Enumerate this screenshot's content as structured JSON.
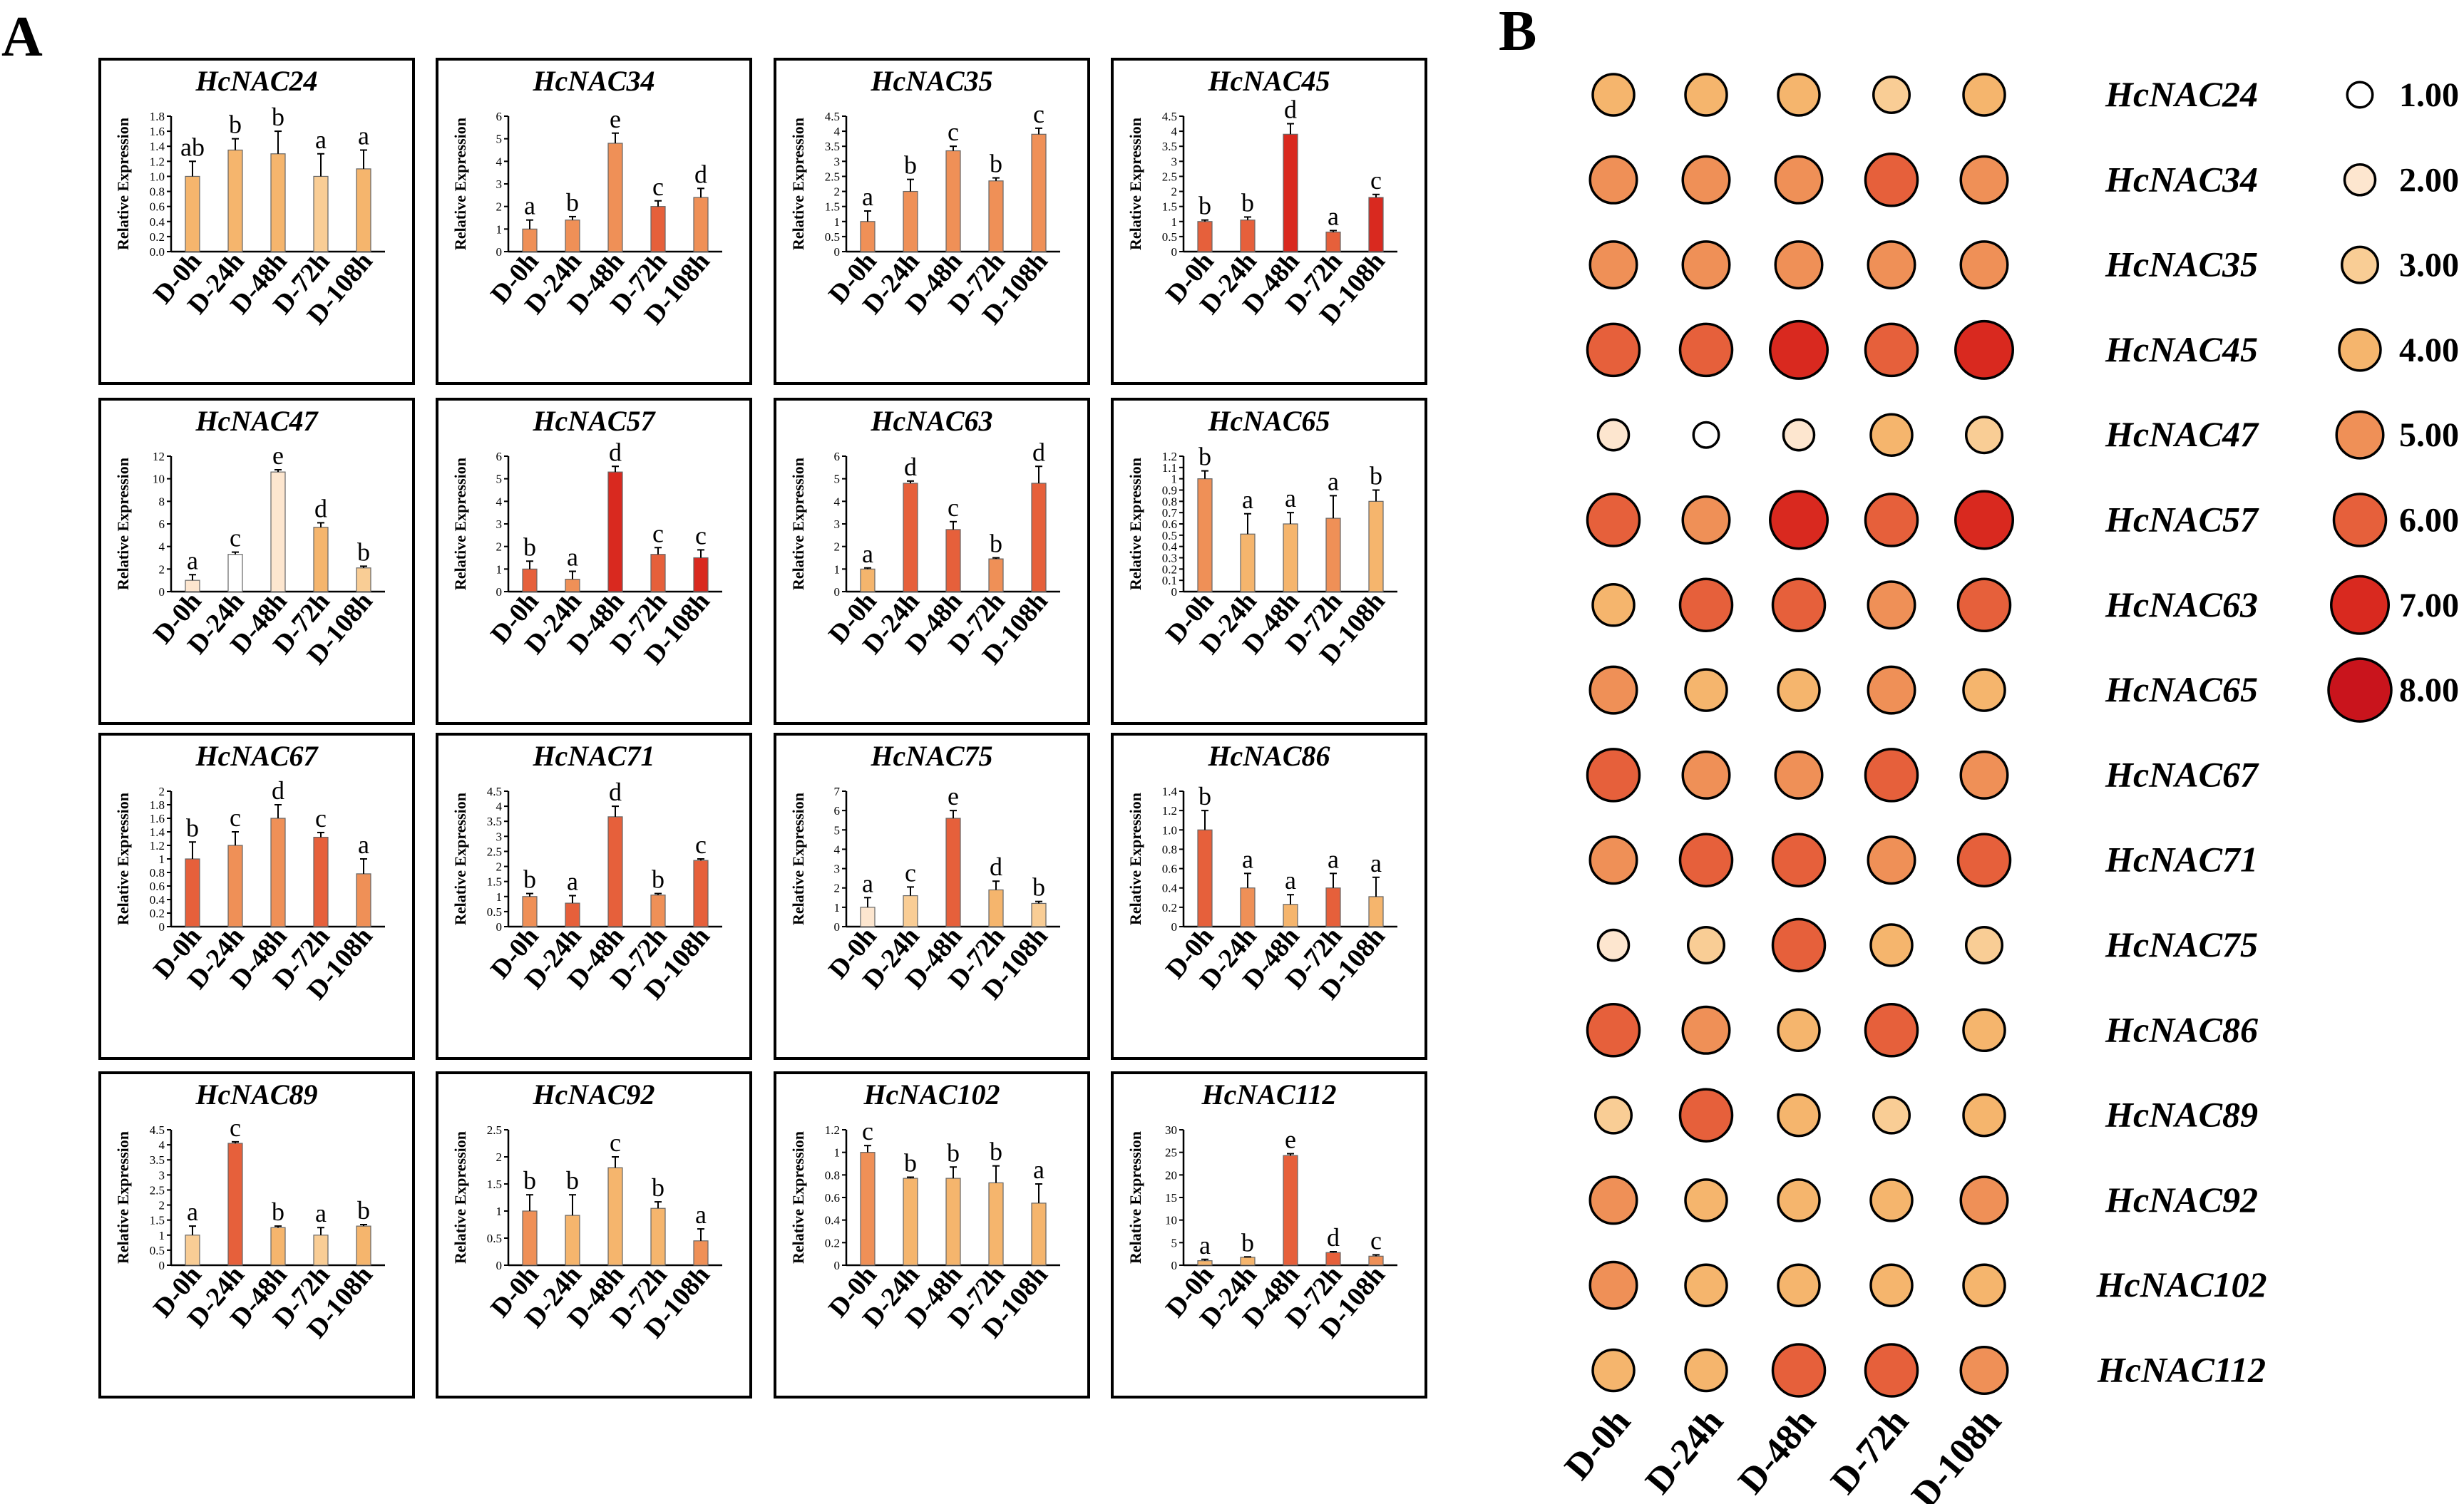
{
  "panel_a_label": "A",
  "panel_b_label": "B",
  "ylabel": "Relative Expression",
  "colors": {
    "l1": "#ffffff",
    "l2": "#fde6cf",
    "l3": "#f9cd95",
    "l4": "#f5b56d",
    "l5": "#ef9057",
    "l6": "#e6603b",
    "l7": "#d9291f",
    "l8": "#c9141c"
  },
  "chart_data": [
    {
      "type": "bar",
      "title": "HcNAC24",
      "categories": [
        "D-0h",
        "D-24h",
        "D-48h",
        "D-72h",
        "D-108h"
      ],
      "values": [
        1.0,
        1.35,
        1.3,
        1.0,
        1.1
      ],
      "errors": [
        0.2,
        0.15,
        0.3,
        0.3,
        0.25
      ],
      "letters": [
        "ab",
        "b",
        "b",
        "a",
        "a"
      ],
      "levels": [
        4,
        4,
        4,
        3,
        4
      ],
      "ticks": [
        "0.0",
        "0.2",
        "0.4",
        "0.6",
        "0.8",
        "1.0",
        "1.2",
        "1.4",
        "1.6",
        "1.8"
      ],
      "ylim": [
        0,
        1.8
      ],
      "ylabel": "Relative Expression"
    },
    {
      "type": "bar",
      "title": "HcNAC34",
      "categories": [
        "D-0h",
        "D-24h",
        "D-48h",
        "D-72h",
        "D-108h"
      ],
      "values": [
        1.0,
        1.4,
        4.8,
        2.0,
        2.4
      ],
      "errors": [
        0.4,
        0.15,
        0.45,
        0.25,
        0.4
      ],
      "letters": [
        "a",
        "b",
        "e",
        "c",
        "d"
      ],
      "levels": [
        5,
        5,
        5,
        6,
        5
      ],
      "ticks": [
        "0",
        "1",
        "2",
        "3",
        "4",
        "5",
        "6"
      ],
      "ylim": [
        0,
        6
      ],
      "ylabel": "Relative Expression"
    },
    {
      "type": "bar",
      "title": "HcNAC35",
      "categories": [
        "D-0h",
        "D-24h",
        "D-48h",
        "D-72h",
        "D-108h"
      ],
      "values": [
        1.0,
        2.0,
        3.35,
        2.35,
        3.9
      ],
      "errors": [
        0.35,
        0.4,
        0.15,
        0.1,
        0.2
      ],
      "letters": [
        "a",
        "b",
        "c",
        "b",
        "c"
      ],
      "levels": [
        5,
        5,
        5,
        5,
        5
      ],
      "ticks": [
        "0",
        "0.5",
        "1",
        "1.5",
        "2",
        "2.5",
        "3",
        "3.5",
        "4",
        "4.5"
      ],
      "ylim": [
        0,
        4.5
      ],
      "ylabel": "Relative Expression"
    },
    {
      "type": "bar",
      "title": "HcNAC45",
      "categories": [
        "D-0h",
        "D-24h",
        "D-48h",
        "D-72h",
        "D-108h"
      ],
      "values": [
        1.0,
        1.05,
        3.9,
        0.65,
        1.8
      ],
      "errors": [
        0.05,
        0.1,
        0.35,
        0.05,
        0.1
      ],
      "letters": [
        "b",
        "b",
        "d",
        "a",
        "c"
      ],
      "levels": [
        6,
        6,
        7,
        6,
        7
      ],
      "ticks": [
        "0",
        "0.5",
        "1",
        "1.5",
        "2",
        "2.5",
        "3",
        "3.5",
        "4",
        "4.5"
      ],
      "ylim": [
        0,
        4.5
      ],
      "ylabel": "Relative Expression"
    },
    {
      "type": "bar",
      "title": "HcNAC47",
      "categories": [
        "D-0h",
        "D-24h",
        "D-48h",
        "D-72h",
        "D-108h"
      ],
      "values": [
        1.0,
        3.3,
        10.6,
        5.7,
        2.1
      ],
      "errors": [
        0.5,
        0.2,
        0.2,
        0.4,
        0.15
      ],
      "letters": [
        "a",
        "c",
        "e",
        "d",
        "b"
      ],
      "levels": [
        2,
        1,
        2,
        4,
        3
      ],
      "ticks": [
        "0",
        "2",
        "4",
        "6",
        "8",
        "10",
        "12"
      ],
      "ylim": [
        0,
        12
      ],
      "ylabel": "Relative Expression"
    },
    {
      "type": "bar",
      "title": "HcNAC57",
      "categories": [
        "D-0h",
        "D-24h",
        "D-48h",
        "D-72h",
        "D-108h"
      ],
      "values": [
        1.0,
        0.55,
        5.3,
        1.65,
        1.5
      ],
      "errors": [
        0.35,
        0.35,
        0.25,
        0.3,
        0.35
      ],
      "letters": [
        "b",
        "a",
        "d",
        "c",
        "c"
      ],
      "levels": [
        6,
        5,
        7,
        6,
        7
      ],
      "ticks": [
        "0",
        "1",
        "2",
        "3",
        "4",
        "5",
        "6"
      ],
      "ylim": [
        0,
        6
      ],
      "ylabel": "Relative Expression"
    },
    {
      "type": "bar",
      "title": "HcNAC63",
      "categories": [
        "D-0h",
        "D-24h",
        "D-48h",
        "D-72h",
        "D-108h"
      ],
      "values": [
        1.0,
        4.8,
        2.75,
        1.45,
        4.8
      ],
      "errors": [
        0.05,
        0.1,
        0.35,
        0.05,
        0.75
      ],
      "letters": [
        "a",
        "d",
        "c",
        "b",
        "d"
      ],
      "levels": [
        4,
        6,
        6,
        5,
        6
      ],
      "ticks": [
        "0",
        "1",
        "2",
        "3",
        "4",
        "5",
        "6"
      ],
      "ylim": [
        0,
        6
      ],
      "ylabel": "Relative Expression"
    },
    {
      "type": "bar",
      "title": "HcNAC65",
      "categories": [
        "D-0h",
        "D-24h",
        "D-48h",
        "D-72h",
        "D-108h"
      ],
      "values": [
        1.0,
        0.51,
        0.6,
        0.65,
        0.8
      ],
      "errors": [
        0.07,
        0.18,
        0.1,
        0.2,
        0.1
      ],
      "letters": [
        "b",
        "a",
        "a",
        "a",
        "b"
      ],
      "levels": [
        5,
        4,
        4,
        5,
        4
      ],
      "ticks": [
        "0",
        "0.1",
        "0.2",
        "0.3",
        "0.4",
        "0.5",
        "0.6",
        "0.7",
        "0.8",
        "0.9",
        "1",
        "1.1",
        "1.2"
      ],
      "ylim": [
        0,
        1.2
      ],
      "ylabel": "Relative Expression"
    },
    {
      "type": "bar",
      "title": "HcNAC67",
      "categories": [
        "D-0h",
        "D-24h",
        "D-48h",
        "D-72h",
        "D-108h"
      ],
      "values": [
        1.0,
        1.2,
        1.6,
        1.32,
        0.78
      ],
      "errors": [
        0.25,
        0.2,
        0.2,
        0.07,
        0.22
      ],
      "letters": [
        "b",
        "c",
        "d",
        "c",
        "a"
      ],
      "levels": [
        6,
        5,
        5,
        6,
        5
      ],
      "ticks": [
        "0",
        "0.2",
        "0.4",
        "0.6",
        "0.8",
        "1",
        "1.2",
        "1.4",
        "1.6",
        "1.8",
        "2"
      ],
      "ylim": [
        0,
        2
      ],
      "ylabel": "Relative Expression"
    },
    {
      "type": "bar",
      "title": "HcNAC71",
      "categories": [
        "D-0h",
        "D-24h",
        "D-48h",
        "D-72h",
        "D-108h"
      ],
      "values": [
        1.0,
        0.78,
        3.65,
        1.05,
        2.2
      ],
      "errors": [
        0.1,
        0.25,
        0.35,
        0.05,
        0.05
      ],
      "letters": [
        "b",
        "a",
        "d",
        "b",
        "c"
      ],
      "levels": [
        5,
        6,
        6,
        5,
        6
      ],
      "ticks": [
        "0",
        "0.5",
        "1",
        "1.5",
        "2",
        "2.5",
        "3",
        "3.5",
        "4",
        "4.5"
      ],
      "ylim": [
        0,
        4.5
      ],
      "ylabel": "Relative Expression"
    },
    {
      "type": "bar",
      "title": "HcNAC75",
      "categories": [
        "D-0h",
        "D-24h",
        "D-48h",
        "D-72h",
        "D-108h"
      ],
      "values": [
        1.0,
        1.6,
        5.6,
        1.9,
        1.2
      ],
      "errors": [
        0.5,
        0.45,
        0.4,
        0.45,
        0.1
      ],
      "letters": [
        "a",
        "c",
        "e",
        "d",
        "b"
      ],
      "levels": [
        2,
        3,
        6,
        4,
        3
      ],
      "ticks": [
        "0",
        "1",
        "2",
        "3",
        "4",
        "5",
        "6",
        "7"
      ],
      "ylim": [
        0,
        7
      ],
      "ylabel": "Relative Expression"
    },
    {
      "type": "bar",
      "title": "HcNAC86",
      "categories": [
        "D-0h",
        "D-24h",
        "D-48h",
        "D-72h",
        "D-108h"
      ],
      "values": [
        1.0,
        0.4,
        0.23,
        0.4,
        0.31
      ],
      "errors": [
        0.2,
        0.15,
        0.1,
        0.15,
        0.2
      ],
      "letters": [
        "b",
        "a",
        "a",
        "a",
        "a"
      ],
      "levels": [
        6,
        5,
        4,
        6,
        4
      ],
      "ticks": [
        "0",
        "0.2",
        "0.4",
        "0.6",
        "0.8",
        "1.0",
        "1.2",
        "1.4"
      ],
      "ylim": [
        0,
        1.4
      ],
      "ylabel": "Relative Expression"
    },
    {
      "type": "bar",
      "title": "HcNAC89",
      "categories": [
        "D-0h",
        "D-24h",
        "D-48h",
        "D-72h",
        "D-108h"
      ],
      "values": [
        1.0,
        4.05,
        1.25,
        1.0,
        1.3
      ],
      "errors": [
        0.3,
        0.05,
        0.05,
        0.25,
        0.05
      ],
      "letters": [
        "a",
        "c",
        "b",
        "a",
        "b"
      ],
      "levels": [
        3,
        6,
        4,
        3,
        4
      ],
      "ticks": [
        "0",
        "0.5",
        "1",
        "1.5",
        "2",
        "2.5",
        "3",
        "3.5",
        "4",
        "4.5"
      ],
      "ylim": [
        0,
        4.5
      ],
      "ylabel": "Relative Expression"
    },
    {
      "type": "bar",
      "title": "HcNAC92",
      "categories": [
        "D-0h",
        "D-24h",
        "D-48h",
        "D-72h",
        "D-108h"
      ],
      "values": [
        1.0,
        0.92,
        1.8,
        1.05,
        0.45
      ],
      "errors": [
        0.3,
        0.38,
        0.2,
        0.12,
        0.22
      ],
      "letters": [
        "b",
        "b",
        "c",
        "b",
        "a"
      ],
      "levels": [
        5,
        4,
        4,
        4,
        5
      ],
      "ticks": [
        "0",
        "0.5",
        "1",
        "1.5",
        "2",
        "2.5"
      ],
      "ylim": [
        0,
        2.5
      ],
      "ylabel": "Relative Expression"
    },
    {
      "type": "bar",
      "title": "HcNAC102",
      "categories": [
        "D-0h",
        "D-24h",
        "D-48h",
        "D-72h",
        "D-108h"
      ],
      "values": [
        1.0,
        0.77,
        0.77,
        0.73,
        0.55
      ],
      "errors": [
        0.06,
        0.01,
        0.1,
        0.15,
        0.17
      ],
      "letters": [
        "c",
        "b",
        "b",
        "b",
        "a"
      ],
      "levels": [
        5,
        4,
        4,
        4,
        4
      ],
      "ticks": [
        "0",
        "0.2",
        "0.4",
        "0.6",
        "0.8",
        "1",
        "1.2"
      ],
      "ylim": [
        0,
        1.2
      ],
      "ylabel": "Relative Expression"
    },
    {
      "type": "bar",
      "title": "HcNAC112",
      "categories": [
        "D-0h",
        "D-24h",
        "D-48h",
        "D-72h",
        "D-108h"
      ],
      "values": [
        1.0,
        1.75,
        24.3,
        2.8,
        2.0
      ],
      "errors": [
        0.3,
        0.1,
        0.4,
        0.2,
        0.3
      ],
      "letters": [
        "a",
        "b",
        "e",
        "d",
        "c"
      ],
      "levels": [
        4,
        4,
        6,
        6,
        5
      ],
      "ticks": [
        "0",
        "5",
        "10",
        "15",
        "20",
        "25",
        "30"
      ],
      "ylim": [
        0,
        30
      ],
      "ylabel": "Relative Expression"
    },
    {
      "type": "heatmap",
      "columns": [
        "D-0h",
        "D-24h",
        "D-48h",
        "D-72h",
        "D-108h"
      ],
      "rows": [
        "HcNAC24",
        "HcNAC34",
        "HcNAC35",
        "HcNAC45",
        "HcNAC47",
        "HcNAC57",
        "HcNAC63",
        "HcNAC65",
        "HcNAC67",
        "HcNAC71",
        "HcNAC75",
        "HcNAC86",
        "HcNAC89",
        "HcNAC92",
        "HcNAC102",
        "HcNAC112"
      ],
      "values": [
        [
          4,
          4,
          4,
          3,
          4
        ],
        [
          5,
          5,
          5,
          6,
          5
        ],
        [
          5,
          5,
          5,
          5,
          5
        ],
        [
          6,
          6,
          7,
          6,
          7
        ],
        [
          2,
          1,
          2,
          4,
          3
        ],
        [
          6,
          5,
          7,
          6,
          7
        ],
        [
          4,
          6,
          6,
          5,
          6
        ],
        [
          5,
          4,
          4,
          5,
          4
        ],
        [
          6,
          5,
          5,
          6,
          5
        ],
        [
          5,
          6,
          6,
          5,
          6
        ],
        [
          2,
          3,
          6,
          4,
          3
        ],
        [
          6,
          5,
          4,
          6,
          4
        ],
        [
          3,
          6,
          4,
          3,
          4
        ],
        [
          5,
          4,
          4,
          4,
          5
        ],
        [
          5,
          4,
          4,
          4,
          4
        ],
        [
          4,
          4,
          6,
          6,
          5
        ]
      ],
      "legend": [
        {
          "label": "1.00",
          "value": 1
        },
        {
          "label": "2.00",
          "value": 2
        },
        {
          "label": "3.00",
          "value": 3
        },
        {
          "label": "4.00",
          "value": 4
        },
        {
          "label": "5.00",
          "value": 5
        },
        {
          "label": "6.00",
          "value": 6
        },
        {
          "label": "7.00",
          "value": 7
        },
        {
          "label": "8.00",
          "value": 8
        }
      ]
    }
  ]
}
